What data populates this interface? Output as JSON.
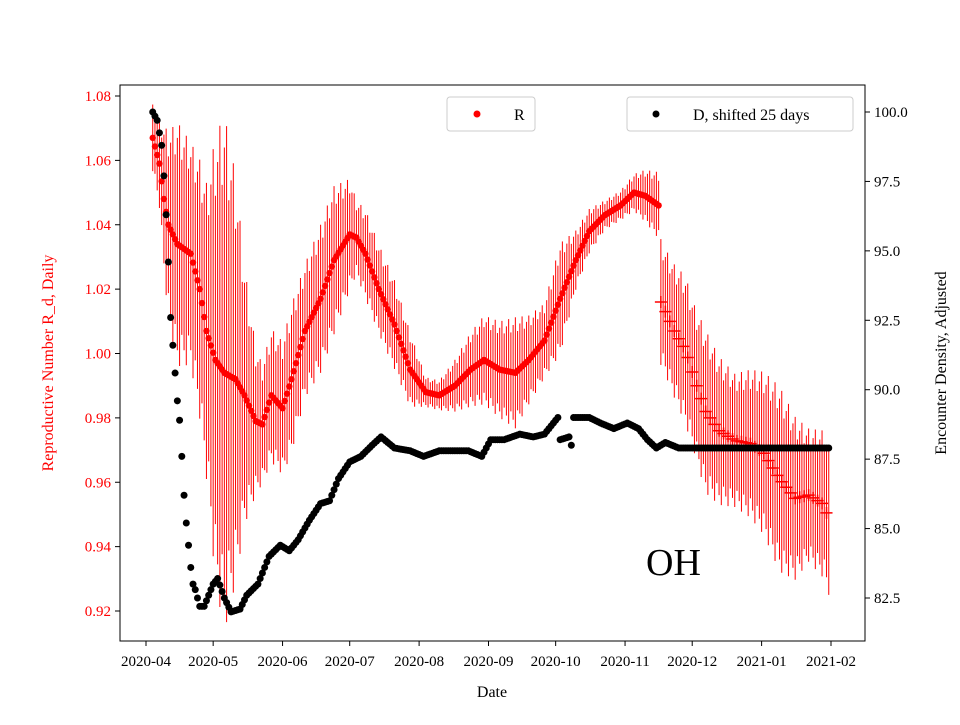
{
  "chart_data": {
    "type": "scatter",
    "xlabel": "Date",
    "ylabel_left": "Reproductive Number R_d, Daily",
    "ylabel_right": "Encounter Density, Adjusted",
    "annotation": "OH",
    "x_ticks": [
      "2020-04",
      "2020-05",
      "2020-06",
      "2020-07",
      "2020-08",
      "2020-09",
      "2020-10",
      "2020-11",
      "2020-12",
      "2021-01",
      "2021-02"
    ],
    "y_left_ticks": [
      "0.92",
      "0.94",
      "0.96",
      "0.98",
      "1.00",
      "1.02",
      "1.04",
      "1.06",
      "1.08"
    ],
    "y_right_ticks": [
      "82.5",
      "85.0",
      "87.5",
      "90.0",
      "92.5",
      "95.0",
      "97.5",
      "100.0"
    ],
    "y_left_range": [
      0.91,
      1.085
    ],
    "y_right_range": [
      81.2,
      101.0
    ],
    "grid": false,
    "legend": [
      {
        "label": "R",
        "placement": "top-center",
        "color": "#ff0000"
      },
      {
        "label": "D, shifted 25 days",
        "placement": "top-right",
        "color": "#000000"
      }
    ],
    "colors": {
      "R": "#ff0000",
      "D": "#000000",
      "left_axis": "#ff0000"
    },
    "series": [
      {
        "name": "R",
        "marker": "dot",
        "axis": "left",
        "points": [
          [
            "2020-04-04",
            1.067,
            0.009
          ],
          [
            "2020-04-07",
            1.059,
            0.012
          ],
          [
            "2020-04-09",
            1.048,
            0.02
          ],
          [
            "2020-04-11",
            1.04,
            0.025
          ],
          [
            "2020-04-15",
            1.034,
            0.033
          ],
          [
            "2020-04-21",
            1.031,
            0.03
          ],
          [
            "2020-04-25",
            1.02,
            0.035
          ],
          [
            "2020-04-28",
            1.007,
            0.04
          ],
          [
            "2020-05-02",
            0.998,
            0.06
          ],
          [
            "2020-05-06",
            0.994,
            0.07
          ],
          [
            "2020-05-11",
            0.992,
            0.055
          ],
          [
            "2020-05-15",
            0.987,
            0.035
          ],
          [
            "2020-05-20",
            0.979,
            0.02
          ],
          [
            "2020-05-23",
            0.978,
            0.016
          ],
          [
            "2020-05-27",
            0.987,
            0.018
          ],
          [
            "2020-06-01",
            0.983,
            0.018
          ],
          [
            "2020-06-05",
            0.992,
            0.02
          ],
          [
            "2020-06-11",
            1.007,
            0.018
          ],
          [
            "2020-06-18",
            1.017,
            0.02
          ],
          [
            "2020-06-24",
            1.029,
            0.02
          ],
          [
            "2020-07-01",
            1.037,
            0.015
          ],
          [
            "2020-07-04",
            1.036,
            0.01
          ],
          [
            "2020-07-08",
            1.031,
            0.012
          ],
          [
            "2020-07-14",
            1.02,
            0.012
          ],
          [
            "2020-07-21",
            1.009,
            0.012
          ],
          [
            "2020-07-28",
            0.995,
            0.01
          ],
          [
            "2020-08-04",
            0.988,
            0.004
          ],
          [
            "2020-08-10",
            0.987,
            0.004
          ],
          [
            "2020-08-17",
            0.99,
            0.007
          ],
          [
            "2020-08-24",
            0.995,
            0.01
          ],
          [
            "2020-08-30",
            0.998,
            0.012
          ],
          [
            "2020-09-06",
            0.995,
            0.013
          ],
          [
            "2020-09-13",
            0.994,
            0.015
          ],
          [
            "2020-09-19",
            0.998,
            0.012
          ],
          [
            "2020-09-26",
            1.004,
            0.01
          ],
          [
            "2020-10-03",
            1.017,
            0.015
          ],
          [
            "2020-10-10",
            1.029,
            0.008
          ],
          [
            "2020-10-16",
            1.038,
            0.006
          ],
          [
            "2020-10-23",
            1.043,
            0.004
          ],
          [
            "2020-10-30",
            1.046,
            0.004
          ],
          [
            "2020-11-05",
            1.05,
            0.005
          ],
          [
            "2020-11-10",
            1.049,
            0.007
          ],
          [
            "2020-11-16",
            1.046,
            0.009
          ]
        ]
      },
      {
        "name": "R",
        "marker": "plus",
        "axis": "left",
        "points": [
          [
            "2020-11-17",
            1.016,
            0.017
          ],
          [
            "2020-11-19",
            1.013,
            0.017
          ],
          [
            "2020-11-23",
            1.007,
            0.018
          ],
          [
            "2020-11-28",
            1.001,
            0.02
          ],
          [
            "2020-12-02",
            0.992,
            0.02
          ],
          [
            "2020-12-07",
            0.982,
            0.022
          ],
          [
            "2020-12-13",
            0.976,
            0.02
          ],
          [
            "2020-12-20",
            0.973,
            0.018
          ],
          [
            "2020-12-27",
            0.972,
            0.02
          ],
          [
            "2021-01-02",
            0.969,
            0.022
          ],
          [
            "2021-01-09",
            0.961,
            0.025
          ],
          [
            "2021-01-16",
            0.955,
            0.022
          ],
          [
            "2021-01-22",
            0.956,
            0.018
          ],
          [
            "2021-01-29",
            0.953,
            0.02
          ],
          [
            "2021-01-31",
            0.948,
            0.02
          ]
        ]
      },
      {
        "name": "D, shifted 25 days",
        "marker": "dot",
        "axis": "right",
        "points": [
          [
            "2020-04-04",
            100.0
          ],
          [
            "2020-04-06",
            99.7
          ],
          [
            "2020-04-08",
            98.8
          ],
          [
            "2020-04-09",
            97.7
          ],
          [
            "2020-04-10",
            96.3
          ],
          [
            "2020-04-11",
            94.6
          ],
          [
            "2020-04-12",
            92.6
          ],
          [
            "2020-04-14",
            90.6
          ],
          [
            "2020-04-15",
            89.6
          ],
          [
            "2020-04-16",
            88.9
          ],
          [
            "2020-04-17",
            87.6
          ],
          [
            "2020-04-18",
            86.2
          ],
          [
            "2020-04-19",
            85.2
          ],
          [
            "2020-04-20",
            84.4
          ],
          [
            "2020-04-21",
            83.6
          ],
          [
            "2020-04-22",
            83.0
          ],
          [
            "2020-04-23",
            82.8
          ],
          [
            "2020-04-25",
            82.2
          ],
          [
            "2020-04-27",
            82.2
          ],
          [
            "2020-04-29",
            82.6
          ],
          [
            "2020-05-01",
            83.0
          ],
          [
            "2020-05-03",
            83.2
          ],
          [
            "2020-05-06",
            82.5
          ],
          [
            "2020-05-09",
            82.0
          ],
          [
            "2020-05-13",
            82.1
          ],
          [
            "2020-05-16",
            82.6
          ],
          [
            "2020-05-21",
            83.0
          ],
          [
            "2020-05-26",
            84.0
          ],
          [
            "2020-05-31",
            84.4
          ],
          [
            "2020-06-04",
            84.2
          ],
          [
            "2020-06-08",
            84.6
          ],
          [
            "2020-06-13",
            85.3
          ],
          [
            "2020-06-18",
            85.9
          ],
          [
            "2020-06-22",
            86.0
          ],
          [
            "2020-06-26",
            86.8
          ],
          [
            "2020-07-01",
            87.4
          ],
          [
            "2020-07-06",
            87.6
          ],
          [
            "2020-07-11",
            88.0
          ],
          [
            "2020-07-15",
            88.3
          ],
          [
            "2020-07-21",
            87.9
          ],
          [
            "2020-07-28",
            87.8
          ],
          [
            "2020-08-03",
            87.6
          ],
          [
            "2020-08-10",
            87.8
          ],
          [
            "2020-08-17",
            87.8
          ],
          [
            "2020-08-23",
            87.8
          ],
          [
            "2020-08-29",
            87.6
          ],
          [
            "2020-09-02",
            88.2
          ],
          [
            "2020-09-08",
            88.2
          ],
          [
            "2020-09-15",
            88.4
          ],
          [
            "2020-09-21",
            88.3
          ],
          [
            "2020-09-26",
            88.4
          ],
          [
            "2020-09-29",
            88.7
          ],
          [
            "2020-10-02",
            89.0
          ],
          [
            "2020-10-03",
            88.2
          ],
          [
            "2020-10-07",
            88.3
          ],
          [
            "2020-10-08",
            88.0
          ],
          [
            "2020-10-09",
            89.0
          ],
          [
            "2020-10-16",
            89.0
          ],
          [
            "2020-10-21",
            88.8
          ],
          [
            "2020-10-27",
            88.6
          ],
          [
            "2020-11-02",
            88.8
          ],
          [
            "2020-11-07",
            88.6
          ],
          [
            "2020-11-11",
            88.2
          ],
          [
            "2020-11-15",
            87.9
          ],
          [
            "2020-11-19",
            88.1
          ],
          [
            "2020-11-25",
            87.9
          ],
          [
            "2020-12-02",
            87.9
          ],
          [
            "2021-01-31",
            87.9
          ]
        ]
      }
    ]
  }
}
